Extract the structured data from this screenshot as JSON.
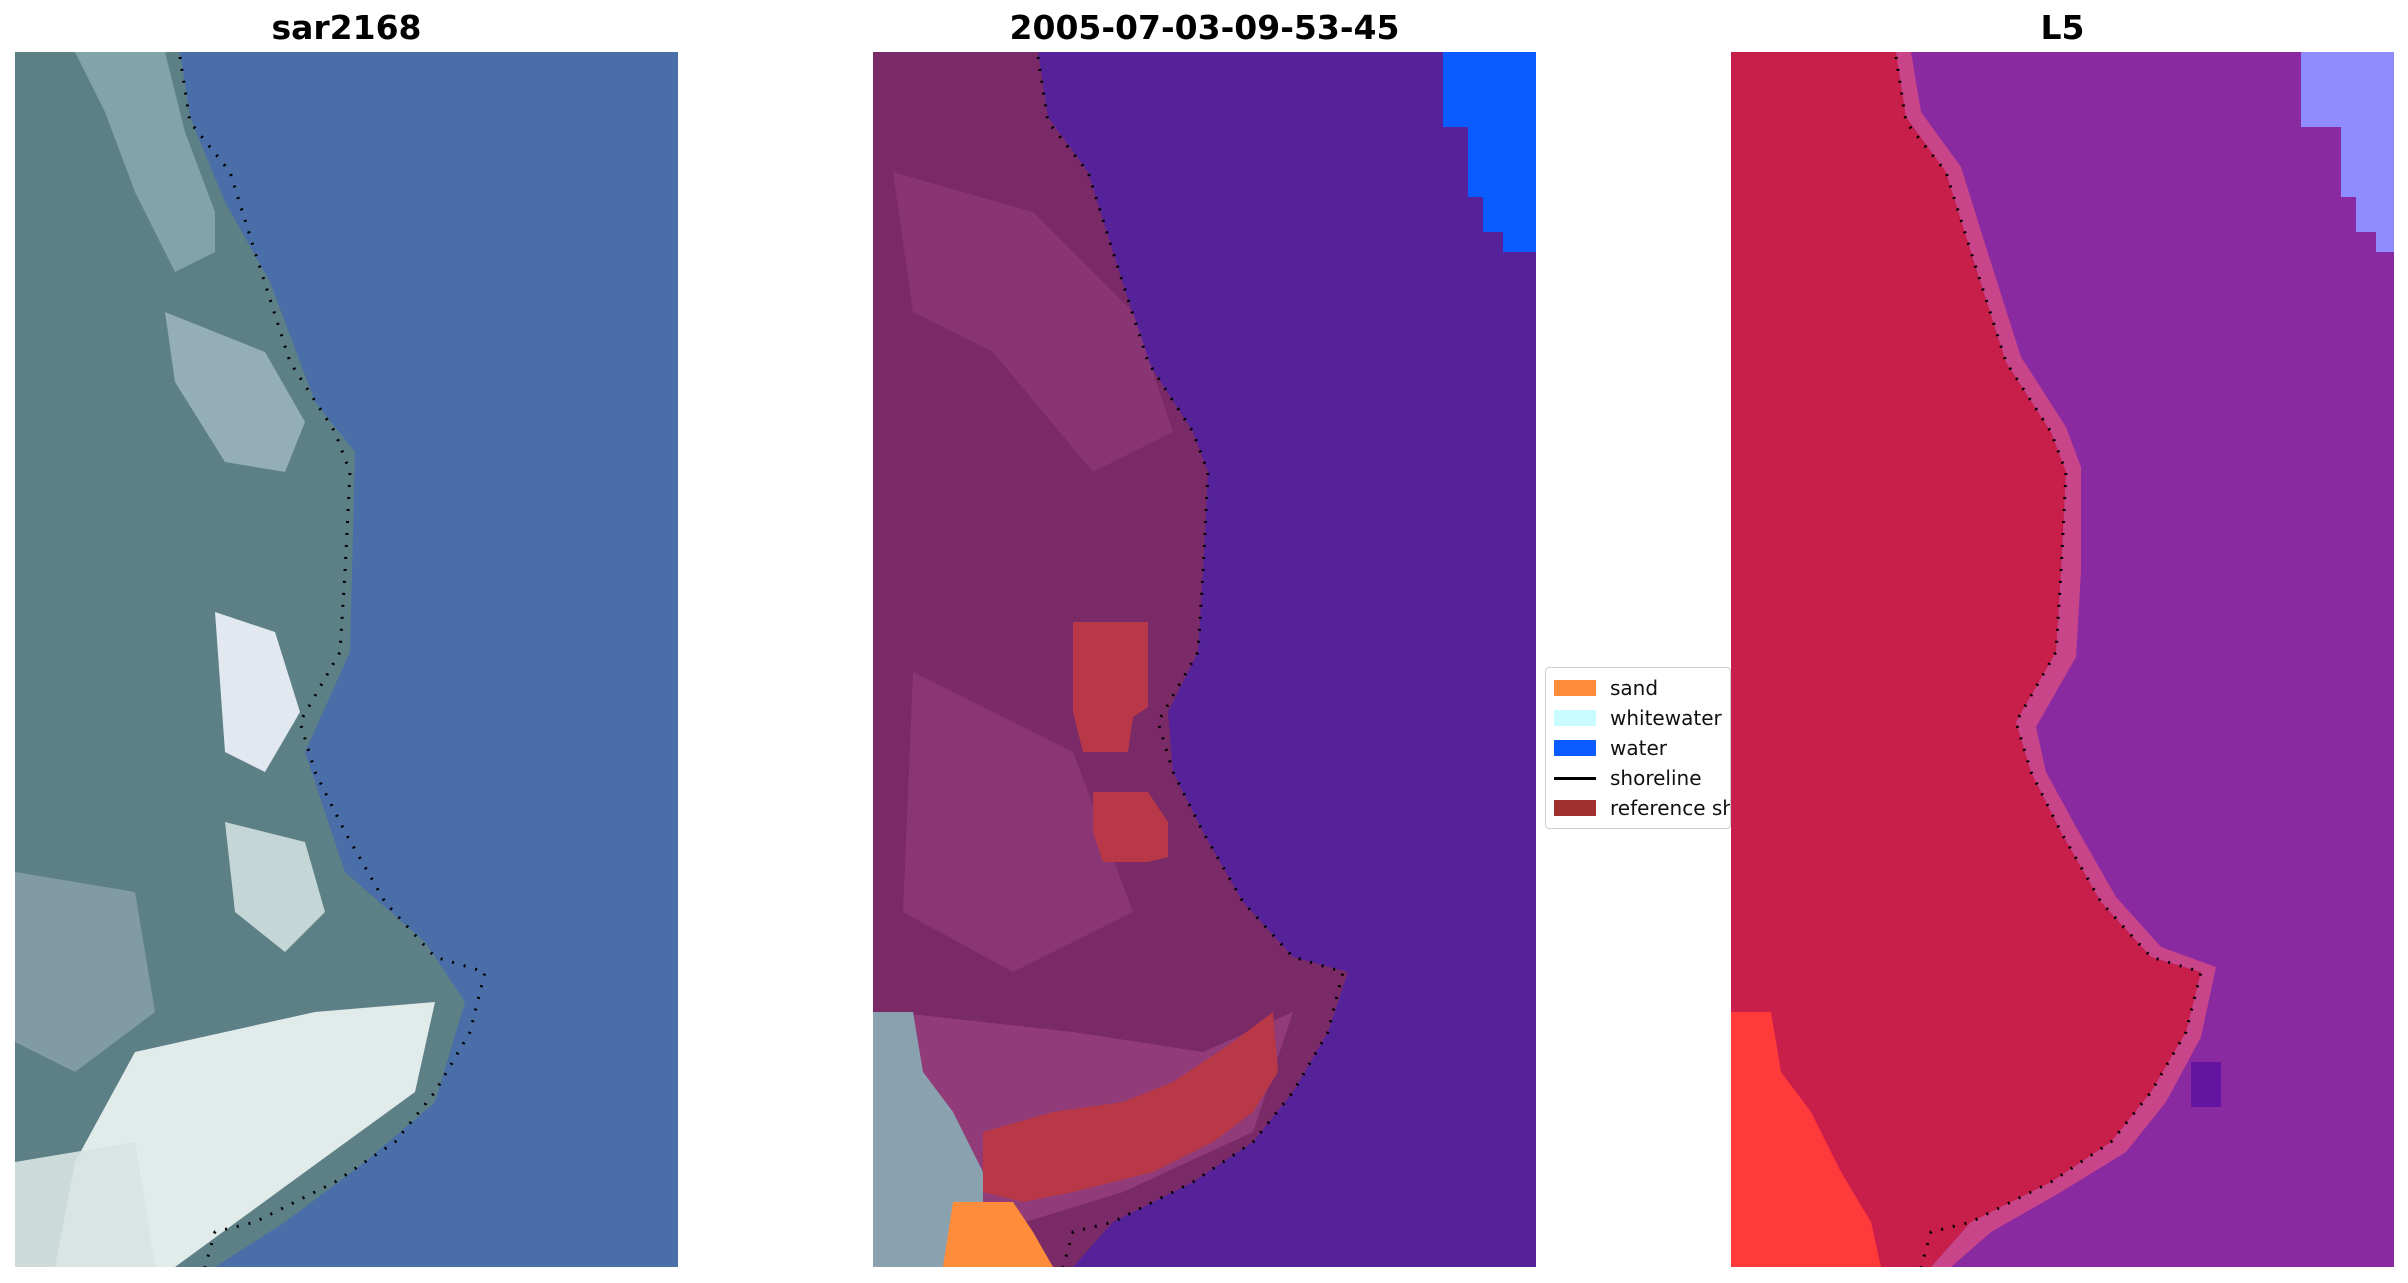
{
  "panels": [
    {
      "title": "sar2168"
    },
    {
      "title": "2005-07-03-09-53-45"
    },
    {
      "title": "L5"
    }
  ],
  "legend": {
    "items": [
      {
        "label": "sand",
        "color": "#ff8c3a"
      },
      {
        "label": "whitewater",
        "color": "#c8fbff"
      },
      {
        "label": "water",
        "color": "#0a5cff"
      },
      {
        "label": "shoreline",
        "color": "#000000"
      },
      {
        "label": "reference shoreline",
        "color": "#a03030"
      }
    ]
  },
  "colors": {
    "water_rgb": "#4a6fa8",
    "land_rgb": "#5a7d84",
    "class_water": "#55229a",
    "class_land": "#7a2a66",
    "class_water_blue": "#0a5cff",
    "class_ref": "#b83848",
    "class_sand": "#ff8c3a",
    "l5_land": "#c81e4a",
    "l5_water": "#8a2aa0",
    "l5_ref_red": "#ff3a3a",
    "l5_blue": "#8f8cff"
  }
}
